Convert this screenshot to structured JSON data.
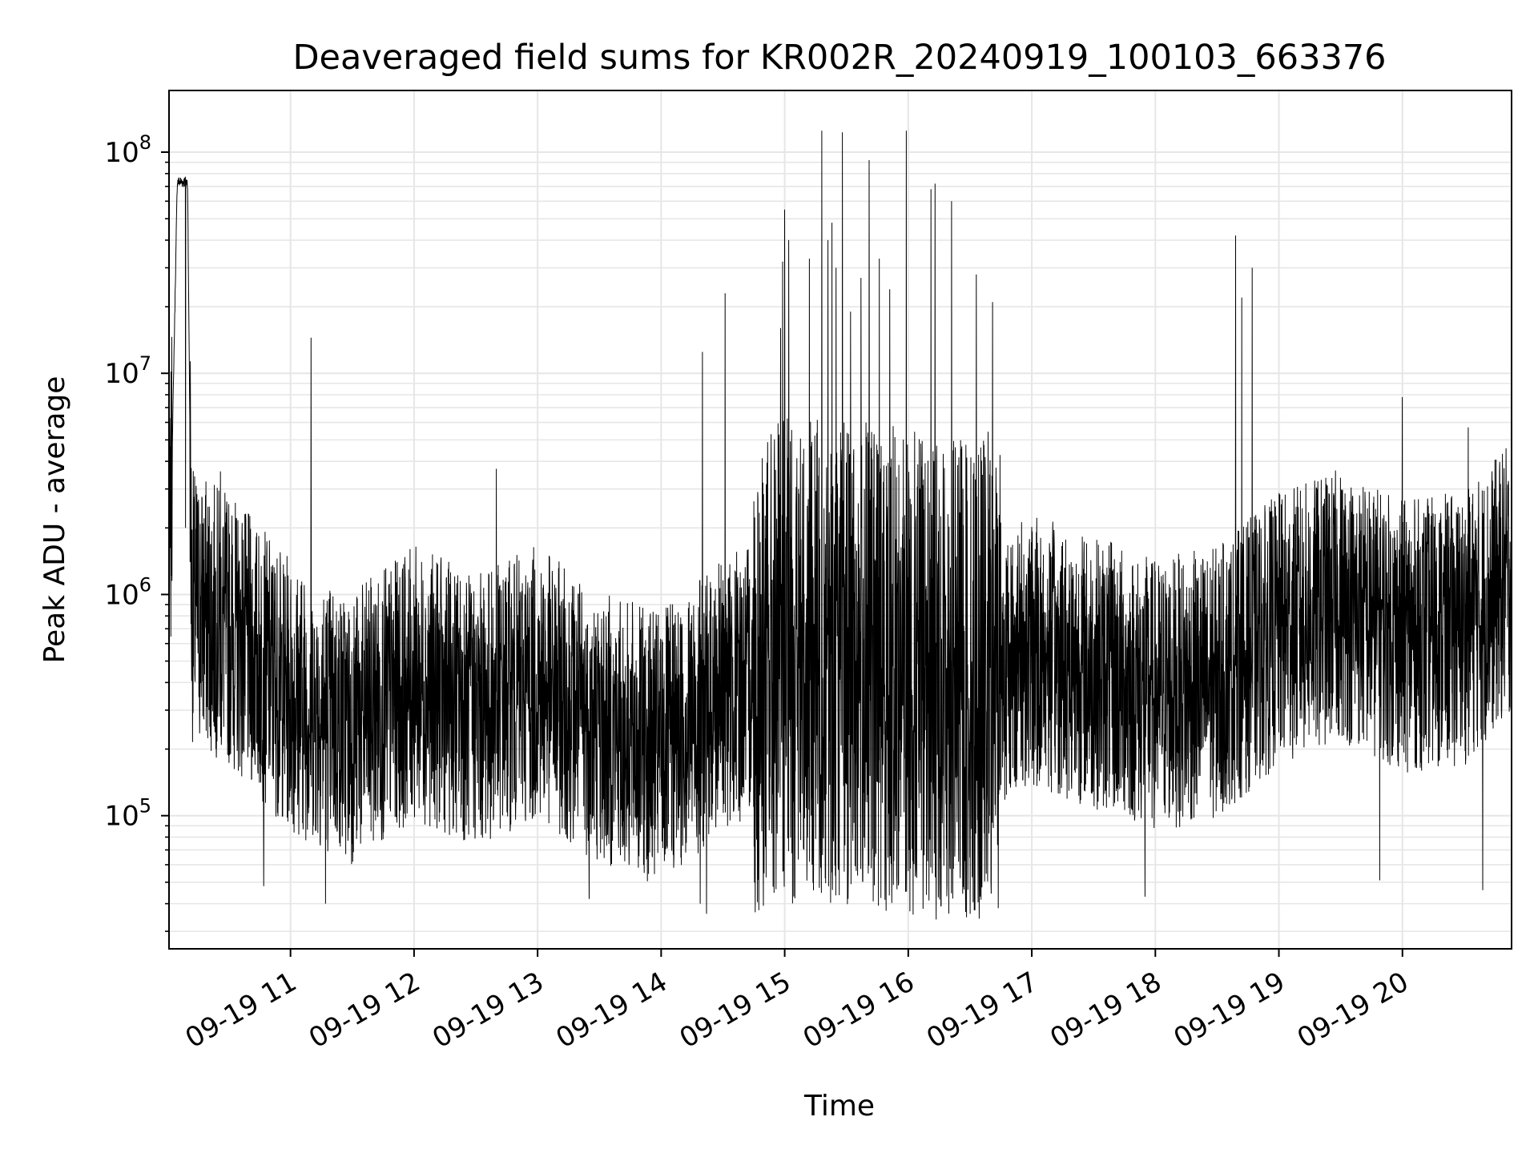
{
  "chart_data": {
    "type": "line",
    "title": "Deaveraged field sums for KR002R_20240919_100103_663376",
    "xlabel": "Time",
    "ylabel": "Peak ADU - average",
    "y_scale": "log",
    "ylim": [
      25000,
      190000000
    ],
    "xlim": [
      "09-19 10:01",
      "09-19 20:53"
    ],
    "grid": true,
    "legend": "none",
    "line_color": "#000000",
    "x_ticks": [
      "09-19 11",
      "09-19 12",
      "09-19 13",
      "09-19 14",
      "09-19 15",
      "09-19 16",
      "09-19 17",
      "09-19 18",
      "09-19 19",
      "09-19 20"
    ],
    "y_ticks": [
      {
        "value": 100000,
        "base": "10",
        "exp": "5"
      },
      {
        "value": 1000000,
        "base": "10",
        "exp": "6"
      },
      {
        "value": 10000000,
        "base": "10",
        "exp": "7"
      },
      {
        "value": 100000000,
        "base": "10",
        "exp": "8"
      }
    ],
    "baseline_profile": [
      {
        "t": "09-19 10:01",
        "median": 800000
      },
      {
        "t": "09-19 10:05",
        "median": 75000000
      },
      {
        "t": "09-19 10:10",
        "median": 75000000
      },
      {
        "t": "09-19 10:12",
        "median": 900000
      },
      {
        "t": "09-19 10:30",
        "median": 700000
      },
      {
        "t": "09-19 11:00",
        "median": 350000
      },
      {
        "t": "09-19 11:30",
        "median": 250000
      },
      {
        "t": "09-19 12:00",
        "median": 400000
      },
      {
        "t": "09-19 12:30",
        "median": 300000
      },
      {
        "t": "09-19 13:00",
        "median": 400000
      },
      {
        "t": "09-19 13:30",
        "median": 250000
      },
      {
        "t": "09-19 14:00",
        "median": 200000
      },
      {
        "t": "09-19 14:30",
        "median": 350000
      },
      {
        "t": "09-19 15:00",
        "median": 500000
      },
      {
        "t": "09-19 15:30",
        "median": 500000
      },
      {
        "t": "09-19 16:00",
        "median": 450000
      },
      {
        "t": "09-19 16:30",
        "median": 400000
      },
      {
        "t": "09-19 17:00",
        "median": 550000
      },
      {
        "t": "09-19 17:30",
        "median": 450000
      },
      {
        "t": "09-19 18:00",
        "median": 350000
      },
      {
        "t": "09-19 18:30",
        "median": 400000
      },
      {
        "t": "09-19 19:00",
        "median": 700000
      },
      {
        "t": "09-19 19:30",
        "median": 900000
      },
      {
        "t": "09-19 20:00",
        "median": 650000
      },
      {
        "t": "09-19 20:30",
        "median": 700000
      },
      {
        "t": "09-19 20:53",
        "median": 1200000
      }
    ],
    "spikes": [
      {
        "t": "09-19 10:09",
        "value": 2000000
      },
      {
        "t": "09-19 10:26",
        "value": 3600000
      },
      {
        "t": "09-19 11:10",
        "value": 14500000
      },
      {
        "t": "09-19 12:40",
        "value": 3700000
      },
      {
        "t": "09-19 14:20",
        "value": 12500000
      },
      {
        "t": "09-19 14:31",
        "value": 23000000
      },
      {
        "t": "09-19 14:59",
        "value": 32000000
      },
      {
        "t": "09-19 14:58",
        "value": 16000000
      },
      {
        "t": "09-19 15:00",
        "value": 55000000
      },
      {
        "t": "09-19 15:02",
        "value": 40000000
      },
      {
        "t": "09-19 15:12",
        "value": 33000000
      },
      {
        "t": "09-19 15:18",
        "value": 125000000
      },
      {
        "t": "09-19 15:21",
        "value": 40000000
      },
      {
        "t": "09-19 15:23",
        "value": 48000000
      },
      {
        "t": "09-19 15:25",
        "value": 30000000
      },
      {
        "t": "09-19 15:28",
        "value": 123000000
      },
      {
        "t": "09-19 15:32",
        "value": 19000000
      },
      {
        "t": "09-19 15:37",
        "value": 27000000
      },
      {
        "t": "09-19 15:41",
        "value": 92000000
      },
      {
        "t": "09-19 15:46",
        "value": 33000000
      },
      {
        "t": "09-19 15:51",
        "value": 24000000
      },
      {
        "t": "09-19 15:59",
        "value": 125000000
      },
      {
        "t": "09-19 16:11",
        "value": 68000000
      },
      {
        "t": "09-19 16:13",
        "value": 72000000
      },
      {
        "t": "09-19 16:21",
        "value": 60000000
      },
      {
        "t": "09-19 16:33",
        "value": 28000000
      },
      {
        "t": "09-19 16:41",
        "value": 21000000
      },
      {
        "t": "09-19 18:39",
        "value": 42000000
      },
      {
        "t": "09-19 18:42",
        "value": 22000000
      },
      {
        "t": "09-19 18:47",
        "value": 30000000
      },
      {
        "t": "09-19 20:00",
        "value": 7800000
      },
      {
        "t": "09-19 20:32",
        "value": 5700000
      }
    ],
    "dips": [
      {
        "t": "09-19 10:47",
        "value": 48000
      },
      {
        "t": "09-19 11:17",
        "value": 40000
      },
      {
        "t": "09-19 13:25",
        "value": 42000
      },
      {
        "t": "09-19 14:19",
        "value": 40000
      },
      {
        "t": "09-19 14:22",
        "value": 36000
      },
      {
        "t": "09-19 17:55",
        "value": 43000
      },
      {
        "t": "09-19 19:49",
        "value": 51000
      },
      {
        "t": "09-19 20:39",
        "value": 46000
      }
    ]
  }
}
